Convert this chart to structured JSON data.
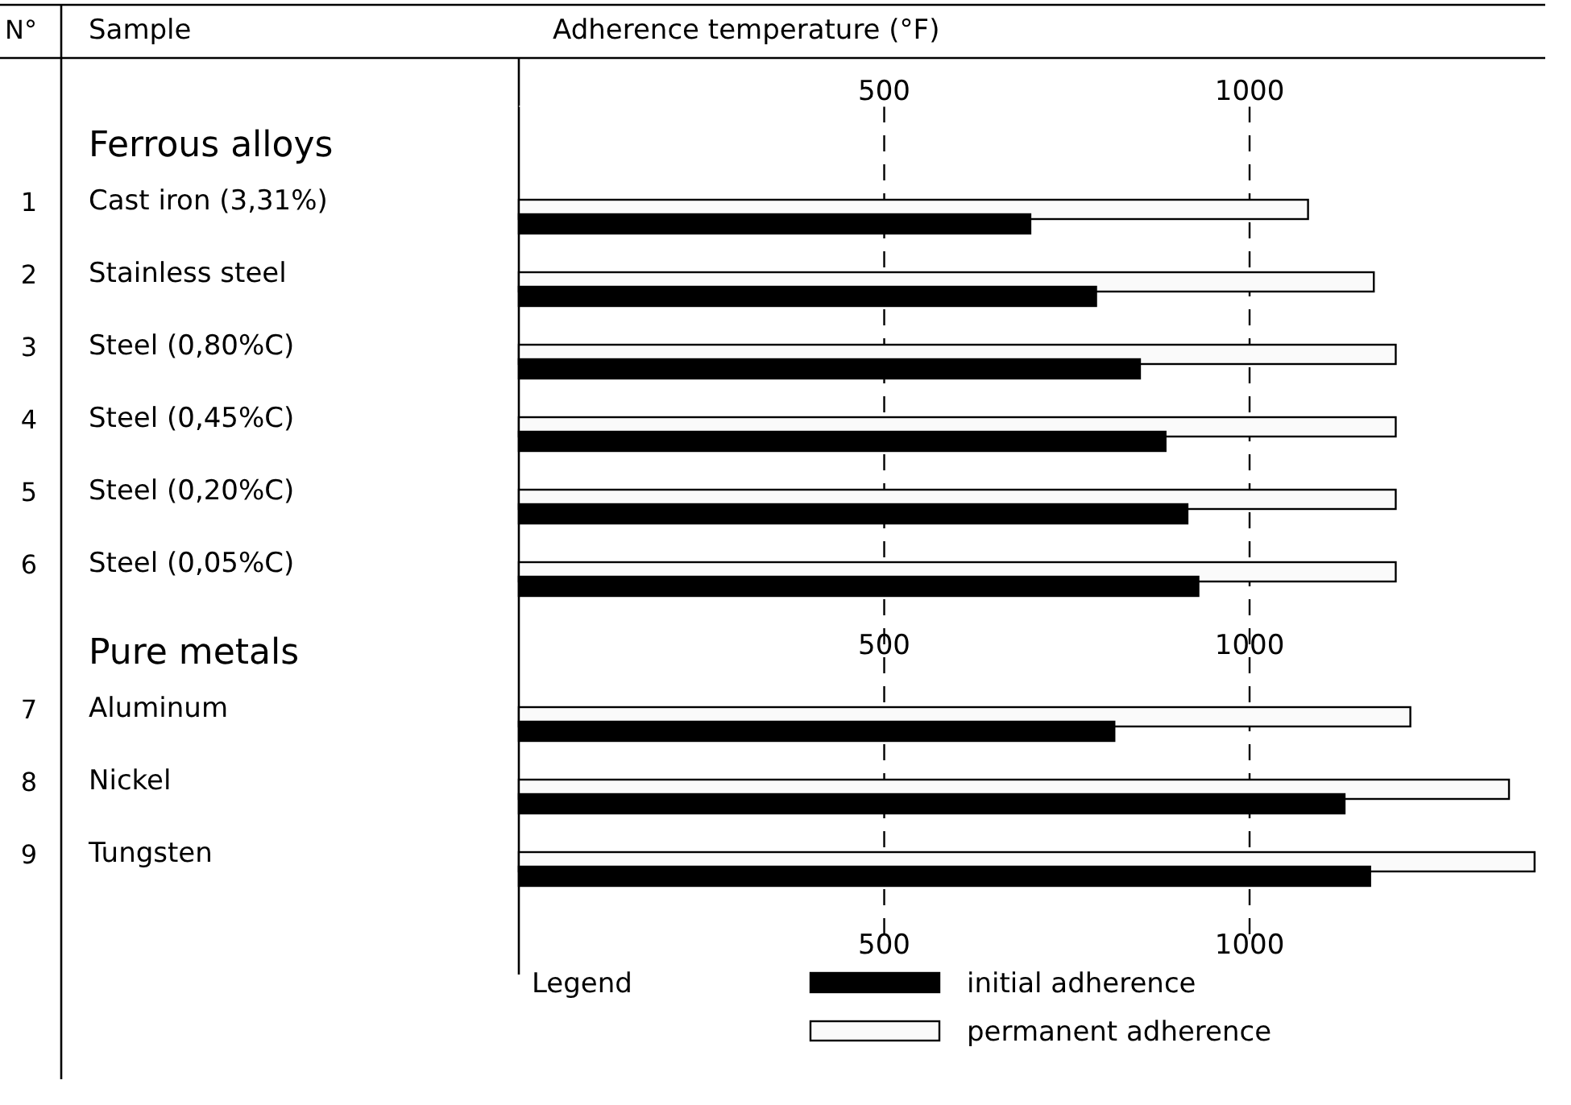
{
  "chart_data": {
    "type": "bar",
    "orientation": "horizontal",
    "xlabel": "Adherence temperature (°F)",
    "ylabel": "Sample",
    "legend_title": "Legend",
    "legend": "bottom",
    "grid": "x",
    "line_style": "dashed",
    "categories": [
      "Ferrous alloys",
      "Cast iron (3,31%)",
      "Stainless steel",
      "Steel (0,80%C)",
      "Steel (0,45%C)",
      "Steel (0,20%C)",
      "Steel (0,05%C)",
      "Pure metals",
      "Aluminum",
      "Nickel",
      "Tungsten"
    ],
    "series": [
      {
        "name": "initial adherence",
        "color": "#000000",
        "values": [
          null,
          700,
          790,
          850,
          885,
          915,
          930,
          null,
          815,
          1130,
          1165
        ]
      },
      {
        "name": "permanent adherence",
        "color": "#fafafa",
        "values": [
          null,
          1080,
          1170,
          1200,
          1200,
          1200,
          1200,
          null,
          1220,
          1355,
          1390
        ]
      }
    ],
    "xlim": [
      0,
      1420
    ],
    "xticks": [
      500,
      1000
    ],
    "x2lim": [
      0,
      1420
    ],
    "x2ticks": [
      500,
      1000
    ],
    "annotations": [
      "N°",
      "1",
      "2",
      "3",
      "4",
      "5",
      "6",
      "7",
      "8",
      "9",
      "500",
      "1000"
    ]
  }
}
